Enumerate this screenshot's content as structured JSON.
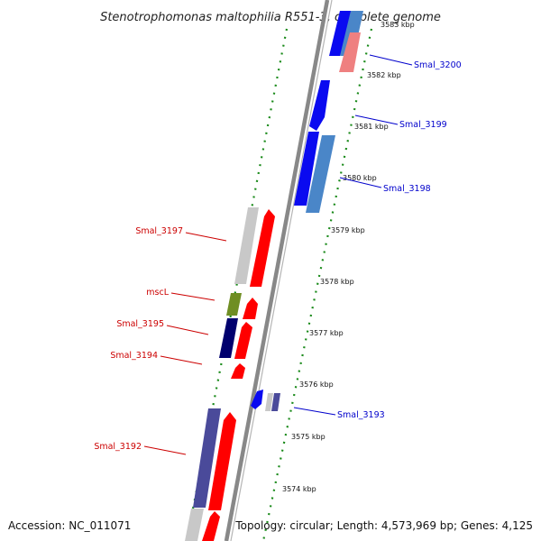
{
  "title": "Stenotrophomonas maltophilia R551-3, complete genome",
  "footer": {
    "accession": "Accession: NC_011071",
    "topology": "Topology: circular; Length: 4,573,969 bp; Genes: 4,125"
  },
  "scale_labels": [
    "3583 kbp",
    "3582 kbp",
    "3581 kbp",
    "3580 kbp",
    "3579 kbp",
    "3578 kbp",
    "3577 kbp",
    "3576 kbp",
    "3575 kbp",
    "3574 kbp"
  ],
  "gene_labels": {
    "forward": [
      "Smal_3200",
      "Smal_3199",
      "Smal_3198",
      "Smal_3193"
    ],
    "reverse": [
      "Smal_3197",
      "mscL",
      "Smal_3195",
      "Smal_3194",
      "Smal_3192"
    ]
  },
  "colors": {
    "forward_label": "#0000cc",
    "reverse_label": "#cc0000",
    "blue": "#0a0af0",
    "steel": "#4a86c8",
    "red": "#ff0000",
    "pink": "#ef8080",
    "gray": "#c8c8c8",
    "olive": "#6f8e23",
    "navy": "#00006e",
    "slate": "#4a4a9a",
    "tick": "#1a8a1a",
    "backbone": "#888888"
  }
}
